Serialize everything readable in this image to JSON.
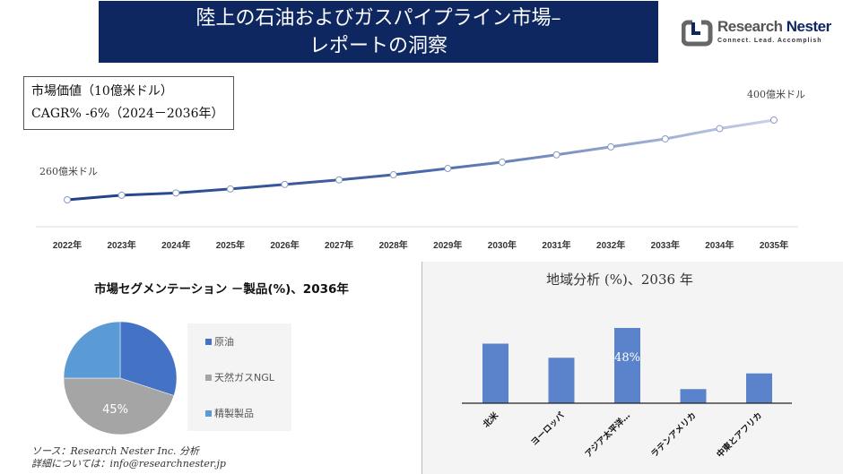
{
  "header": {
    "title_line1": "陸上の石油およびガスパイプライン市場–",
    "title_line2": "レポートの洞察"
  },
  "logo": {
    "name_part1": "Research ",
    "name_part2": "Nester",
    "tagline": "Connect. Lead. Accomplish"
  },
  "info": {
    "market_value": "市場価値（10億米ドル）",
    "cagr": "CAGR% -6%（2024－2036年）"
  },
  "colors": {
    "title_bg": "#0e2760",
    "bar": "#5b83cb",
    "crude": "#4472c4",
    "ngl": "#a5a5a5",
    "refined": "#5b9bd5"
  },
  "chart_data": [
    {
      "type": "line",
      "x": [
        "2022年",
        "2023年",
        "2024年",
        "2025年",
        "2026年",
        "2027年",
        "2028年",
        "2029年",
        "2030年",
        "2031年",
        "2032年",
        "2033年",
        "2034年",
        "2035年"
      ],
      "values": [
        260,
        268,
        272,
        279,
        287,
        295,
        304,
        315,
        326,
        339,
        353,
        367,
        385,
        400
      ],
      "annotations": {
        "start": "260億米ドル",
        "end": "400億米ドル"
      },
      "grid": false
    },
    {
      "type": "pie",
      "title": "市場セグメンテーション －製品(%)、2036年",
      "labels": [
        "原油",
        "天然ガスNGL",
        "精製製品"
      ],
      "values": [
        30,
        45,
        25
      ],
      "data_labels": [
        "",
        "45%",
        ""
      ],
      "legend": "right"
    },
    {
      "type": "bar",
      "title": "地域分析 (%)、2036 年",
      "categories": [
        "北米",
        "ヨーロッパ",
        "アジア太平洋…",
        "ラテンアメリカ",
        "中東とアフリカ"
      ],
      "values": [
        38,
        29,
        48,
        9,
        19
      ],
      "data_labels": [
        "",
        "",
        "48%",
        "",
        ""
      ]
    }
  ],
  "footer": {
    "source": "ソース：Research Nester Inc. 分析",
    "contact": "詳細については：info@researchnester.jp"
  }
}
